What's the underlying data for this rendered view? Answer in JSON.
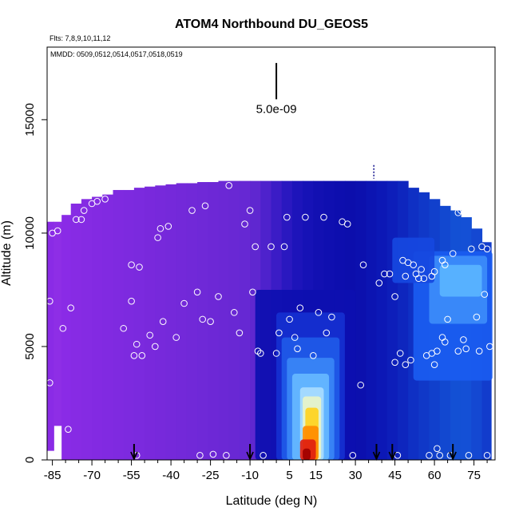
{
  "chart_data": {
    "type": "heatmap",
    "title": "ATOM4 Northbound DU_GEOS5",
    "flights_label": "Flts: 7,8,9,10,11,12",
    "dates_label": "MMDD: 0509,0512,0514,0517,0518,0519",
    "xlabel": "Latitude (deg N)",
    "ylabel": "Altitude (m)",
    "xlim": [
      -87,
      83
    ],
    "ylim": [
      0,
      18200
    ],
    "x_ticks": [
      -85,
      -70,
      -55,
      -40,
      -25,
      -10,
      5,
      15,
      30,
      45,
      60,
      75
    ],
    "x_tick_labels": [
      "-85",
      "-70",
      "-55",
      "-40",
      "-25",
      "-10",
      "5",
      "15",
      "30",
      "45",
      "60",
      "75"
    ],
    "x_minor_ticks": [
      -80,
      -75,
      -65,
      -60,
      -50,
      -45,
      -35,
      -30,
      -20,
      -15,
      -5,
      0,
      10,
      20,
      25,
      35,
      40,
      50,
      55,
      65,
      70,
      80
    ],
    "y_ticks": [
      0,
      5000,
      10000,
      15000
    ],
    "y_tick_labels": [
      "0",
      "5000",
      "10000",
      "15000"
    ],
    "scale_bar_label": "5.0e-09",
    "colors": {
      "background_violet": "#8a2be6",
      "dark_blue": "#0b0fb0",
      "mid_blue": "#1a5cf0",
      "light_blue": "#5ab4ff",
      "yellow": "#ffd21e",
      "orange": "#ff7a00",
      "red": "#e01010",
      "dark_red": "#9a0000"
    },
    "profiles": [
      {
        "lat": -86,
        "bottom": 400,
        "top": 10500,
        "color": "#8a2be6"
      },
      {
        "lat": -83,
        "bottom": 1500,
        "top": 10500,
        "color": "#8e2ee6"
      },
      {
        "lat": -80,
        "bottom": 0,
        "top": 10800,
        "color": "#8a2be6"
      },
      {
        "lat": -76,
        "bottom": 0,
        "top": 11300,
        "color": "#872be4"
      },
      {
        "lat": -72,
        "bottom": 0,
        "top": 11500,
        "color": "#852be3"
      },
      {
        "lat": -68,
        "bottom": 0,
        "top": 11600,
        "color": "#832ae2"
      },
      {
        "lat": -64,
        "bottom": 0,
        "top": 11700,
        "color": "#812ae1"
      },
      {
        "lat": -60,
        "bottom": 0,
        "top": 11900,
        "color": "#7f2ae0"
      },
      {
        "lat": -56,
        "bottom": 0,
        "top": 11900,
        "color": "#7d2adf"
      },
      {
        "lat": -52,
        "bottom": 0,
        "top": 12000,
        "color": "#7b2ade"
      },
      {
        "lat": -48,
        "bottom": 0,
        "top": 12050,
        "color": "#7929dc"
      },
      {
        "lat": -44,
        "bottom": 0,
        "top": 12100,
        "color": "#7729db"
      },
      {
        "lat": -40,
        "bottom": 0,
        "top": 12150,
        "color": "#7529da"
      },
      {
        "lat": -36,
        "bottom": 0,
        "top": 12200,
        "color": "#7329d9"
      },
      {
        "lat": -32,
        "bottom": 0,
        "top": 12200,
        "color": "#7129d8"
      },
      {
        "lat": -28,
        "bottom": 0,
        "top": 12250,
        "color": "#6f29d7"
      },
      {
        "lat": -24,
        "bottom": 0,
        "top": 12250,
        "color": "#6d28d6"
      },
      {
        "lat": -20,
        "bottom": 0,
        "top": 12300,
        "color": "#6b28d5"
      },
      {
        "lat": -16,
        "bottom": 0,
        "top": 12300,
        "color": "#6928d4"
      },
      {
        "lat": -12,
        "bottom": 0,
        "top": 12300,
        "color": "#6628d3"
      },
      {
        "lat": -8,
        "bottom": 0,
        "top": 12300,
        "color": "#5f27d0"
      },
      {
        "lat": -4,
        "bottom": 0,
        "top": 12300,
        "color": "#4e22cc"
      },
      {
        "lat": 0,
        "bottom": 0,
        "top": 12300,
        "color": "#3b1cc6"
      },
      {
        "lat": 4,
        "bottom": 0,
        "top": 12300,
        "color": "#2a18c0"
      },
      {
        "lat": 8,
        "bottom": 0,
        "top": 12300,
        "color": "#1d14ba"
      },
      {
        "lat": 12,
        "bottom": 0,
        "top": 12300,
        "color": "#1612b6"
      },
      {
        "lat": 16,
        "bottom": 0,
        "top": 12300,
        "color": "#1210b2"
      },
      {
        "lat": 20,
        "bottom": 0,
        "top": 12300,
        "color": "#0f0fb0"
      },
      {
        "lat": 24,
        "bottom": 0,
        "top": 12300,
        "color": "#0d0eae"
      },
      {
        "lat": 28,
        "bottom": 0,
        "top": 12300,
        "color": "#0c0eac"
      },
      {
        "lat": 32,
        "bottom": 0,
        "top": 12300,
        "color": "#0c10ae"
      },
      {
        "lat": 36,
        "bottom": 0,
        "top": 12300,
        "color": "#0c14b2"
      },
      {
        "lat": 40,
        "bottom": 0,
        "top": 12300,
        "color": "#0c18b6"
      },
      {
        "lat": 44,
        "bottom": 0,
        "top": 12300,
        "color": "#0d1eba"
      },
      {
        "lat": 48,
        "bottom": 0,
        "top": 12300,
        "color": "#0e26be"
      },
      {
        "lat": 52,
        "bottom": 0,
        "top": 12000,
        "color": "#0f30c4"
      },
      {
        "lat": 56,
        "bottom": 0,
        "top": 11800,
        "color": "#1038c8"
      },
      {
        "lat": 60,
        "bottom": 0,
        "top": 11500,
        "color": "#1140cc"
      },
      {
        "lat": 64,
        "bottom": 0,
        "top": 11200,
        "color": "#1248d0"
      },
      {
        "lat": 68,
        "bottom": 0,
        "top": 11000,
        "color": "#1350d4"
      },
      {
        "lat": 72,
        "bottom": 0,
        "top": 10700,
        "color": "#1450d6"
      },
      {
        "lat": 76,
        "bottom": 0,
        "top": 10200,
        "color": "#1448d2"
      },
      {
        "lat": 80,
        "bottom": 0,
        "top": 9600,
        "color": "#123ccc"
      }
    ],
    "features": [
      {
        "lat0": -8,
        "lat1": 30,
        "alt0": 0,
        "alt1": 7500,
        "color": "#0d0fb0"
      },
      {
        "lat0": 0,
        "lat1": 26,
        "alt0": 0,
        "alt1": 6500,
        "color": "#1530d0"
      },
      {
        "lat0": 2,
        "lat1": 24,
        "alt0": 0,
        "alt1": 5400,
        "color": "#1f5ae8"
      },
      {
        "lat0": 4,
        "lat1": 22,
        "alt0": 0,
        "alt1": 4500,
        "color": "#3a86f6"
      },
      {
        "lat0": 6,
        "lat1": 20,
        "alt0": 0,
        "alt1": 3800,
        "color": "#66b8ff"
      },
      {
        "lat0": 9,
        "lat1": 18,
        "alt0": 0,
        "alt1": 3200,
        "color": "#a8dcff"
      },
      {
        "lat0": 10,
        "lat1": 17,
        "alt0": 0,
        "alt1": 2800,
        "color": "#e8f4c8"
      },
      {
        "lat0": 11,
        "lat1": 16,
        "alt0": 0,
        "alt1": 2300,
        "color": "#ffd21e"
      },
      {
        "lat0": 10,
        "lat1": 16,
        "alt0": 0,
        "alt1": 1500,
        "color": "#ff8c00"
      },
      {
        "lat0": 9,
        "lat1": 15,
        "alt0": 0,
        "alt1": 900,
        "color": "#e02010"
      },
      {
        "lat0": 10,
        "lat1": 13,
        "alt0": 0,
        "alt1": 500,
        "color": "#a00000"
      },
      {
        "lat0": 52,
        "lat1": 82,
        "alt0": 3500,
        "alt1": 9200,
        "color": "#1a5cf0"
      },
      {
        "lat0": 58,
        "lat1": 80,
        "alt0": 6000,
        "alt1": 9000,
        "color": "#3c8cfa"
      },
      {
        "lat0": 62,
        "lat1": 78,
        "alt0": 7200,
        "alt1": 8600,
        "color": "#5ab4ff"
      },
      {
        "lat0": 44,
        "lat1": 60,
        "alt0": 7800,
        "alt1": 9800,
        "color": "#1648e0"
      }
    ],
    "obs_points": [
      [
        -86,
        7000
      ],
      [
        -86,
        3400
      ],
      [
        -85,
        10000
      ],
      [
        -83,
        10100
      ],
      [
        -81,
        5800
      ],
      [
        -79,
        1350
      ],
      [
        -78,
        6700
      ],
      [
        -76,
        10600
      ],
      [
        -74,
        10600
      ],
      [
        -73,
        11000
      ],
      [
        -70,
        11300
      ],
      [
        -68,
        11400
      ],
      [
        -65,
        11500
      ],
      [
        -58,
        5800
      ],
      [
        -55,
        8600
      ],
      [
        -55,
        7000
      ],
      [
        -54,
        4600
      ],
      [
        -53,
        200
      ],
      [
        -53,
        5100
      ],
      [
        -52,
        8500
      ],
      [
        -51,
        4600
      ],
      [
        -48,
        5500
      ],
      [
        -46,
        5000
      ],
      [
        -45,
        9800
      ],
      [
        -44,
        10200
      ],
      [
        -43,
        6100
      ],
      [
        -41,
        10300
      ],
      [
        -38,
        5400
      ],
      [
        -35,
        6900
      ],
      [
        -32,
        11000
      ],
      [
        -30,
        7400
      ],
      [
        -29,
        200
      ],
      [
        -28,
        6200
      ],
      [
        -27,
        11200
      ],
      [
        -25,
        6100
      ],
      [
        -24,
        250
      ],
      [
        -22,
        7200
      ],
      [
        -19,
        200
      ],
      [
        -18,
        12100
      ],
      [
        -16,
        6500
      ],
      [
        -14,
        5600
      ],
      [
        -12,
        10400
      ],
      [
        -10,
        11000
      ],
      [
        -9,
        7400
      ],
      [
        -8,
        9400
      ],
      [
        -7,
        4800
      ],
      [
        -6,
        4700
      ],
      [
        -5,
        200
      ],
      [
        -2,
        9400
      ],
      [
        0,
        4700
      ],
      [
        1,
        5600
      ],
      [
        3,
        9400
      ],
      [
        4,
        10700
      ],
      [
        5,
        6200
      ],
      [
        7,
        5400
      ],
      [
        8,
        4900
      ],
      [
        9,
        6700
      ],
      [
        11,
        10700
      ],
      [
        14,
        4600
      ],
      [
        16,
        6500
      ],
      [
        18,
        10700
      ],
      [
        19,
        5600
      ],
      [
        21,
        6300
      ],
      [
        25,
        10500
      ],
      [
        27,
        10400
      ],
      [
        29,
        200
      ],
      [
        32,
        3300
      ],
      [
        33,
        8600
      ],
      [
        39,
        7800
      ],
      [
        41,
        8200
      ],
      [
        43,
        8200
      ],
      [
        45,
        7200
      ],
      [
        45,
        4300
      ],
      [
        46,
        200
      ],
      [
        47,
        4700
      ],
      [
        48,
        8800
      ],
      [
        49,
        8100
      ],
      [
        49,
        4200
      ],
      [
        50,
        8700
      ],
      [
        51,
        4400
      ],
      [
        52,
        8600
      ],
      [
        53,
        8200
      ],
      [
        54,
        8000
      ],
      [
        55,
        8400
      ],
      [
        56,
        8000
      ],
      [
        57,
        4600
      ],
      [
        58,
        200
      ],
      [
        59,
        8100
      ],
      [
        59,
        4700
      ],
      [
        60,
        8300
      ],
      [
        60,
        4200
      ],
      [
        61,
        500
      ],
      [
        61,
        4800
      ],
      [
        62,
        200
      ],
      [
        63,
        5400
      ],
      [
        63,
        8800
      ],
      [
        64,
        5200
      ],
      [
        64,
        8600
      ],
      [
        65,
        6200
      ],
      [
        66,
        200
      ],
      [
        67,
        9100
      ],
      [
        68,
        11300
      ],
      [
        69,
        10900
      ],
      [
        69,
        4800
      ],
      [
        70,
        11000
      ],
      [
        71,
        5300
      ],
      [
        71,
        11200
      ],
      [
        72,
        4900
      ],
      [
        73,
        10900
      ],
      [
        73,
        200
      ],
      [
        74,
        9300
      ],
      [
        76,
        6300
      ],
      [
        77,
        4800
      ],
      [
        78,
        9400
      ],
      [
        79,
        7300
      ],
      [
        80,
        9300
      ],
      [
        80,
        200
      ],
      [
        81,
        5000
      ]
    ],
    "arrows": [
      -54,
      -10,
      38,
      44,
      67
    ],
    "scale_bar": {
      "lat": 0,
      "alt0": 15900,
      "alt1": 17500
    },
    "top_marker": {
      "lat": 37,
      "alt0": 12400,
      "alt1": 13000
    }
  }
}
